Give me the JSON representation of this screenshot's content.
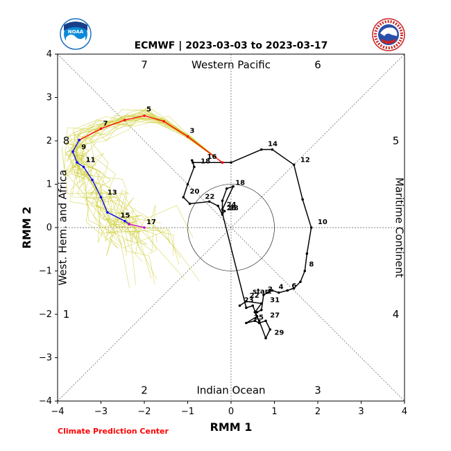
{
  "logos": {
    "left": "NOAA",
    "right": "NATIONAL WEATHER SERVICE"
  },
  "footer": {
    "credit": "Climate Prediction Center"
  },
  "chart_data": {
    "type": "line",
    "title": "ECMWF | 2023-03-03 to 2023-03-17",
    "xlabel": "RMM 1",
    "ylabel": "RMM 2",
    "xlim": [
      -4,
      4
    ],
    "ylim": [
      -4,
      4
    ],
    "ticks": [
      -4,
      -3,
      -2,
      -1,
      0,
      1,
      2,
      3,
      4
    ],
    "unit_circle_radius": 1,
    "phase_labels": [
      {
        "text": "1",
        "x": -3.8,
        "y": -2
      },
      {
        "text": "2",
        "x": -2,
        "y": -3.75
      },
      {
        "text": "3",
        "x": 2,
        "y": -3.75
      },
      {
        "text": "4",
        "x": 3.8,
        "y": -2
      },
      {
        "text": "5",
        "x": 3.8,
        "y": 2
      },
      {
        "text": "6",
        "x": 2,
        "y": 3.75
      },
      {
        "text": "7",
        "x": -2,
        "y": 3.75
      },
      {
        "text": "8",
        "x": -3.8,
        "y": 2
      }
    ],
    "region_labels": [
      {
        "text": "Western Pacific",
        "x": 0,
        "y": 3.75,
        "rotate": 0
      },
      {
        "text": "Indian Ocean",
        "x": 0,
        "y": -3.75,
        "rotate": 0
      },
      {
        "text": "West. Hem. and Africa",
        "x": -3.8,
        "y": 0,
        "rotate": -90
      },
      {
        "text": "Maritime Continent",
        "x": 3.8,
        "y": 0,
        "rotate": 90
      }
    ],
    "observed": {
      "color": "#000000",
      "points": [
        [
          0.6,
          -1.95
        ],
        [
          0.7,
          -1.9
        ],
        [
          0.75,
          -1.55
        ],
        [
          0.85,
          -1.5
        ],
        [
          0.95,
          -1.45
        ],
        [
          1.1,
          -1.5
        ],
        [
          1.3,
          -1.45
        ],
        [
          1.45,
          -1.4
        ],
        [
          1.6,
          -1.25
        ],
        [
          1.7,
          -1.0
        ],
        [
          1.75,
          -0.6
        ],
        [
          1.85,
          0.0
        ],
        [
          1.65,
          0.65
        ],
        [
          1.45,
          1.45
        ],
        [
          0.95,
          1.8
        ],
        [
          0.7,
          1.8
        ],
        [
          0.0,
          1.5
        ],
        [
          -0.2,
          1.5
        ],
        [
          -0.88,
          1.5
        ],
        [
          -0.9,
          1.55
        ],
        [
          -0.85,
          1.4
        ],
        [
          -1.0,
          1.0
        ],
        [
          -1.1,
          0.7
        ],
        [
          -0.95,
          0.55
        ],
        [
          -0.5,
          0.6
        ],
        [
          -0.3,
          0.5
        ],
        [
          -0.2,
          0.3
        ],
        [
          -0.2,
          0.62
        ],
        [
          -0.1,
          0.9
        ],
        [
          0.05,
          0.95
        ],
        [
          -0.2,
          0.42
        ],
        [
          -0.15,
          0.38
        ],
        [
          -0.2,
          0.33
        ],
        [
          0.35,
          -1.85
        ],
        [
          0.5,
          -1.8
        ],
        [
          0.6,
          -2.05
        ],
        [
          0.35,
          -2.2
        ],
        [
          0.55,
          -2.15
        ],
        [
          0.65,
          -2.2
        ],
        [
          0.8,
          -2.15
        ],
        [
          0.9,
          -2.35
        ],
        [
          0.8,
          -2.55
        ],
        [
          0.65,
          -2.15
        ],
        [
          0.55,
          -1.95
        ],
        [
          0.7,
          -1.75
        ],
        [
          0.35,
          -1.7
        ],
        [
          0.2,
          -1.8
        ]
      ],
      "labels": [
        {
          "text": "start",
          "x": 0.45,
          "y": -1.55
        },
        {
          "text": "2",
          "x": 0.8,
          "y": -1.5
        },
        {
          "text": "4",
          "x": 1.05,
          "y": -1.45
        },
        {
          "text": "6",
          "x": 1.35,
          "y": -1.42
        },
        {
          "text": "8",
          "x": 1.75,
          "y": -0.93
        },
        {
          "text": "10",
          "x": 1.95,
          "y": 0.05
        },
        {
          "text": "12",
          "x": 1.55,
          "y": 1.48
        },
        {
          "text": "14",
          "x": 0.8,
          "y": 1.85
        },
        {
          "text": "16",
          "x": -0.6,
          "y": 1.55
        },
        {
          "text": "18",
          "x": -0.75,
          "y": 1.45
        },
        {
          "text": "18",
          "x": 0.05,
          "y": 0.95
        },
        {
          "text": "20",
          "x": -1.0,
          "y": 0.75
        },
        {
          "text": "22",
          "x": -0.65,
          "y": 0.63
        },
        {
          "text": "24",
          "x": -0.15,
          "y": 0.45
        },
        {
          "text": "26",
          "x": -0.15,
          "y": 0.37
        },
        {
          "text": "28",
          "x": -0.1,
          "y": 0.37
        },
        {
          "text": "22",
          "x": 0.38,
          "y": -1.65
        },
        {
          "text": "23",
          "x": 0.25,
          "y": -1.75
        },
        {
          "text": "25",
          "x": 0.48,
          "y": -2.15
        },
        {
          "text": "27",
          "x": 0.85,
          "y": -2.1
        },
        {
          "text": "29",
          "x": 0.95,
          "y": -2.5
        },
        {
          "text": "31",
          "x": 0.85,
          "y": -1.75
        }
      ]
    },
    "forecast_segments": [
      {
        "color": "#ff0000",
        "points": [
          [
            -0.2,
            1.5
          ],
          [
            -1.0,
            2.1
          ],
          [
            -1.55,
            2.45
          ],
          [
            -2.0,
            2.58
          ],
          [
            -2.45,
            2.48
          ],
          [
            -3.0,
            2.28
          ],
          [
            -3.5,
            2.02
          ]
        ]
      },
      {
        "color": "#0000ff",
        "points": [
          [
            -3.5,
            2.02
          ],
          [
            -3.65,
            1.75
          ],
          [
            -3.55,
            1.5
          ],
          [
            -3.4,
            1.4
          ],
          [
            -3.2,
            1.1
          ],
          [
            -3.0,
            0.7
          ],
          [
            -2.85,
            0.35
          ],
          [
            -2.45,
            0.15
          ],
          [
            -2.35,
            0.08
          ]
        ]
      },
      {
        "color": "#cc00cc",
        "points": [
          [
            -2.35,
            0.08
          ],
          [
            -2.0,
            0.0
          ]
        ]
      }
    ],
    "forecast_labels": [
      {
        "text": "3",
        "x": -1.0,
        "y": 2.15
      },
      {
        "text": "5",
        "x": -2.0,
        "y": 2.65
      },
      {
        "text": "7",
        "x": -3.0,
        "y": 2.32
      },
      {
        "text": "9",
        "x": -3.5,
        "y": 1.78
      },
      {
        "text": "11",
        "x": -3.4,
        "y": 1.48
      },
      {
        "text": "13",
        "x": -2.9,
        "y": 0.73
      },
      {
        "text": "15",
        "x": -2.6,
        "y": 0.2
      },
      {
        "text": "17",
        "x": -2.0,
        "y": 0.05
      }
    ],
    "ensemble": {
      "color": "#cccc33",
      "members": 25,
      "start": [
        -1.0,
        2.1
      ]
    }
  }
}
